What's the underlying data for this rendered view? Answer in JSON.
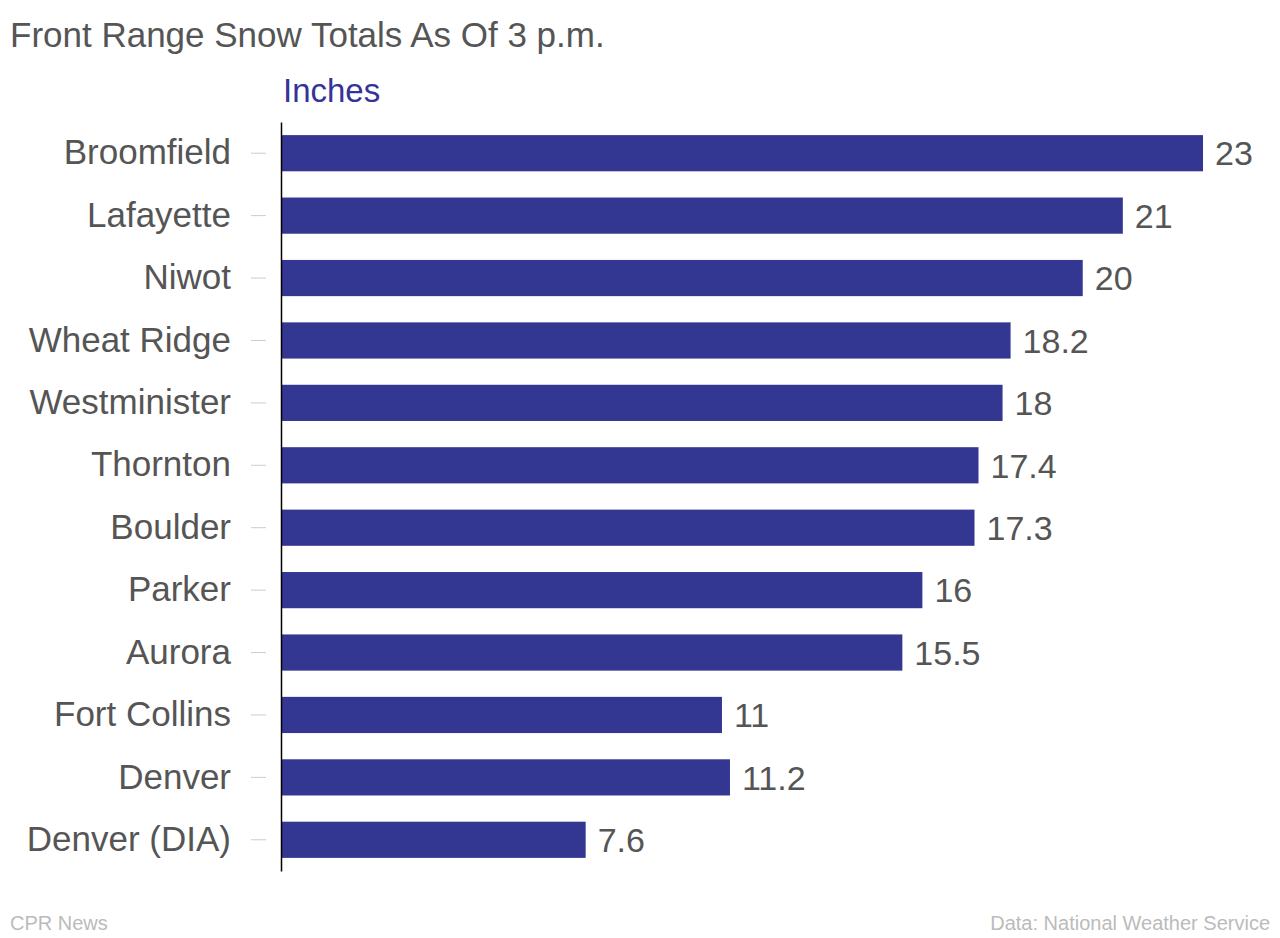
{
  "chart_data": {
    "type": "bar",
    "title": "Front Range Snow Totals As Of 3 p.m.",
    "xlabel": "Inches",
    "categories": [
      "Broomfield",
      "Lafayette",
      "Niwot",
      "Wheat Ridge",
      "Westminister",
      "Thornton",
      "Boulder",
      "Parker",
      "Aurora",
      "Fort Collins",
      "Denver",
      "Denver (DIA)"
    ],
    "values": [
      23,
      21,
      20,
      18.2,
      18,
      17.4,
      17.3,
      16,
      15.5,
      11,
      11.2,
      7.6
    ],
    "color": "#333792",
    "orientation": "horizontal",
    "data_labels": true,
    "grid": false,
    "tick_labels": "y",
    "xlim": [
      0,
      23
    ],
    "annotations": [
      "CPR News",
      "Data: National Weather Service"
    ]
  }
}
